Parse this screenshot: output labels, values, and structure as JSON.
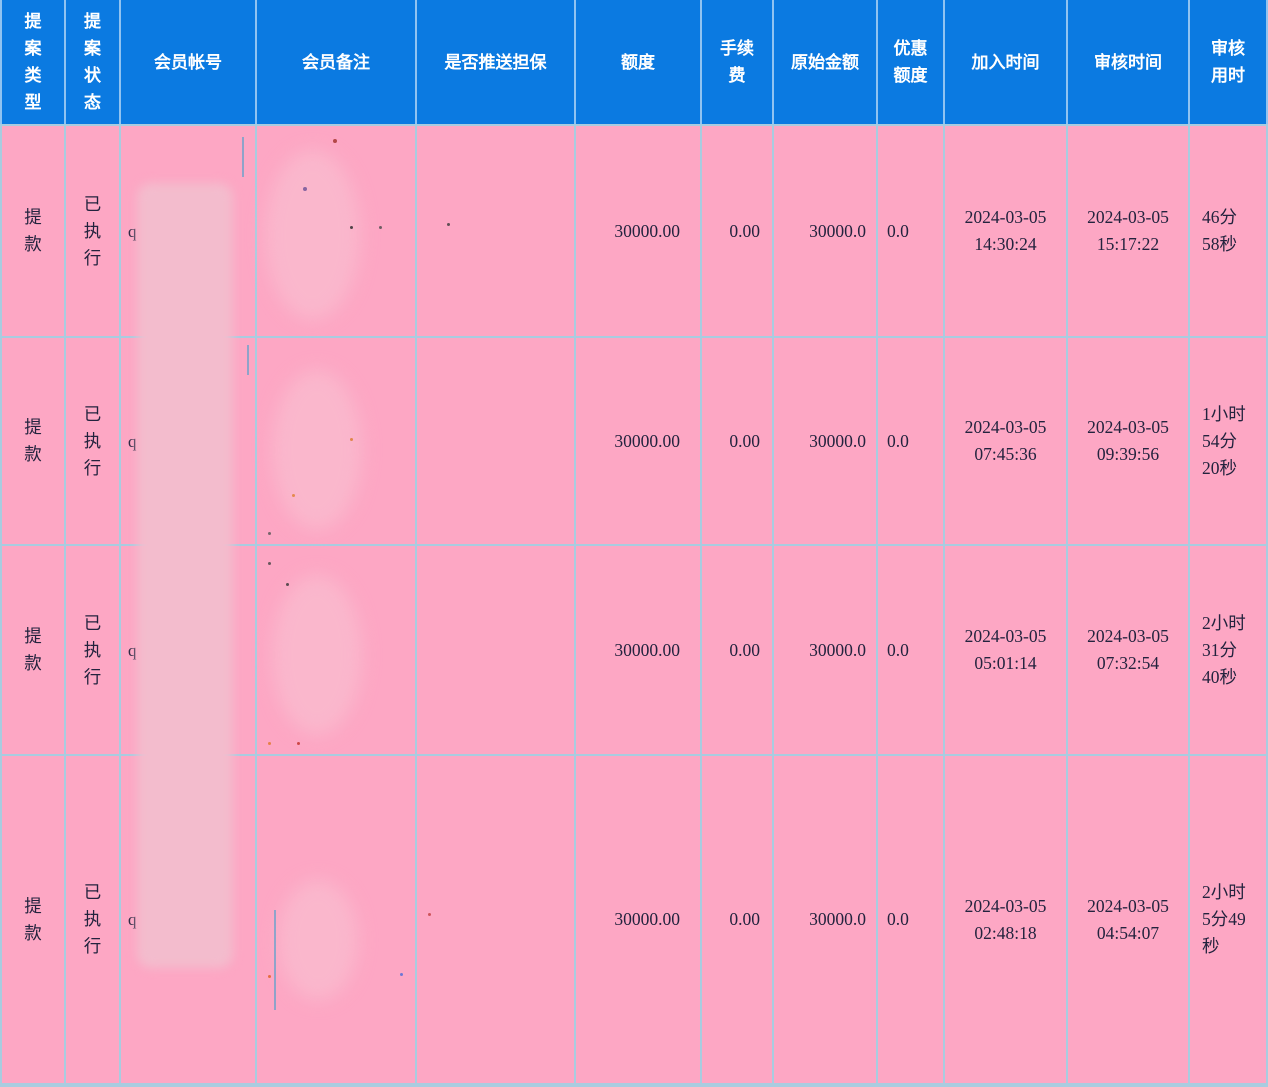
{
  "table": {
    "headers": {
      "proposal_type": "提\n案\n类\n型",
      "proposal_status": "提\n案\n状\n态",
      "member_account": "会员帐号",
      "member_note": "会员备注",
      "push_guarantee": "是否推送担保",
      "amount": "额度",
      "fee": "手续\n费",
      "original_amount": "原始金额",
      "discount_amount": "优惠\n额度",
      "join_time": "加入时间",
      "review_time": "审核时间",
      "review_duration": "审核\n用时"
    },
    "rows": [
      {
        "type": "提款",
        "status": "已\n执\n行",
        "account": "q",
        "note": "",
        "guarantee": "",
        "amount": "30000.00",
        "fee": "0.00",
        "original_amount": "30000.0",
        "discount": "0.0",
        "join_time": "2024-03-05\n14:30:24",
        "review_time": "2024-03-05\n15:17:22",
        "duration": "46分\n58秒"
      },
      {
        "type": "提款",
        "status": "已\n执\n行",
        "account": "q",
        "note": "",
        "guarantee": "",
        "amount": "30000.00",
        "fee": "0.00",
        "original_amount": "30000.0",
        "discount": "0.0",
        "join_time": "2024-03-05\n07:45:36",
        "review_time": "2024-03-05\n09:39:56",
        "duration": "1小时\n54分\n20秒"
      },
      {
        "type": "提款",
        "status": "已\n执\n行",
        "account": "q",
        "note": "",
        "guarantee": "",
        "amount": "30000.00",
        "fee": "0.00",
        "original_amount": "30000.0",
        "discount": "0.0",
        "join_time": "2024-03-05\n05:01:14",
        "review_time": "2024-03-05\n07:32:54",
        "duration": "2小时\n31分\n40秒"
      },
      {
        "type": "提款",
        "status": "已\n执\n行",
        "account": "q",
        "note": "",
        "guarantee": "",
        "amount": "30000.00",
        "fee": "0.00",
        "original_amount": "30000.0",
        "discount": "0.0",
        "join_time": "2024-03-05\n02:48:18",
        "review_time": "2024-03-05\n04:54:07",
        "duration": "2小时\n5分49\n秒"
      }
    ]
  },
  "colors": {
    "header_bg": "#0b7ae1",
    "row_bg": "#fda7c4",
    "divider": "#a9cce0",
    "body_text": "#23233e",
    "header_text": "#ffffff",
    "redaction_blur": "#f3bccd"
  }
}
